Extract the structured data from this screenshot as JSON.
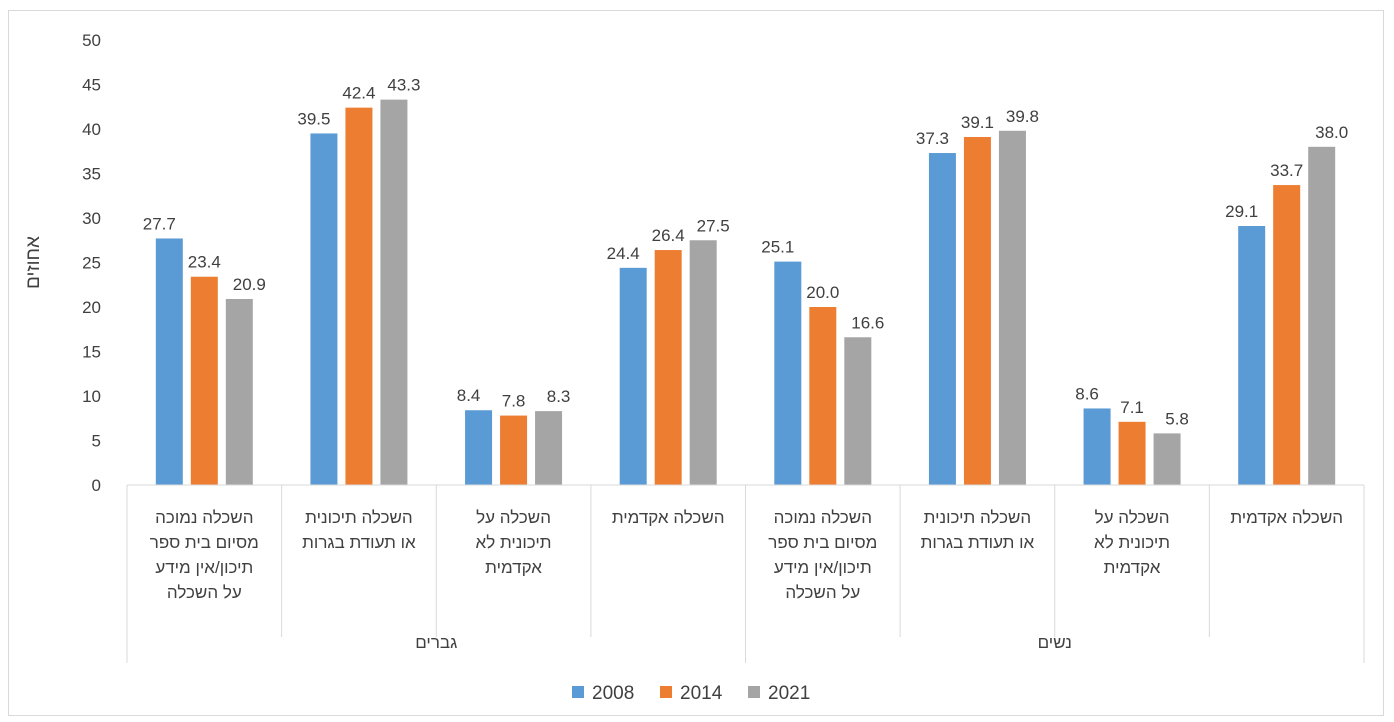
{
  "chart_data": {
    "type": "bar",
    "title": "",
    "ylabel": "אחוזים",
    "xlabel": "",
    "ylim": [
      0,
      50
    ],
    "y_ticks": [
      0,
      5,
      10,
      15,
      20,
      25,
      30,
      35,
      40,
      45,
      50
    ],
    "grid": false,
    "legend_position": "bottom",
    "groups": [
      {
        "label": "גברים",
        "categories": [
          [
            "השכלה נמוכה",
            "מסיום בית ספר",
            "תיכון/אין  מידע",
            "על השכלה"
          ],
          [
            "השכלה  תיכונית",
            "או תעודת בגרות"
          ],
          [
            "השכלה על",
            "תיכונית לא",
            "אקדמית"
          ],
          [
            "השכלה אקדמית"
          ]
        ]
      },
      {
        "label": "נשים",
        "categories": [
          [
            "השכלה נמוכה",
            "מסיום בית ספר",
            "תיכון/אין  מידע",
            "על השכלה"
          ],
          [
            "השכלה  תיכונית",
            "או תעודת בגרות"
          ],
          [
            "השכלה על",
            "תיכונית לא",
            "אקדמית"
          ],
          [
            "השכלה אקדמית"
          ]
        ]
      }
    ],
    "series": [
      {
        "name": "2008",
        "color": "#5b9bd5",
        "values": [
          27.7,
          39.5,
          8.4,
          24.4,
          25.1,
          37.3,
          8.6,
          29.1
        ],
        "labels": [
          "27.7",
          "39.5",
          "8.4",
          "24.4",
          "25.1",
          "37.3",
          "8.6",
          "29.1"
        ]
      },
      {
        "name": "2014",
        "color": "#ed7d31",
        "values": [
          23.4,
          42.4,
          7.8,
          26.4,
          20.0,
          39.1,
          7.1,
          33.7
        ],
        "labels": [
          "23.4",
          "42.4",
          "7.8",
          "26.4",
          "20.0",
          "39.1",
          "7.1",
          "33.7"
        ]
      },
      {
        "name": "2021",
        "color": "#a5a5a5",
        "values": [
          20.9,
          43.3,
          8.3,
          27.5,
          16.6,
          39.8,
          5.8,
          38.0
        ],
        "labels": [
          "20.9",
          "43.3",
          "8.3",
          "27.5",
          "16.6",
          "39.8",
          "5.8",
          "38.0"
        ]
      }
    ]
  }
}
